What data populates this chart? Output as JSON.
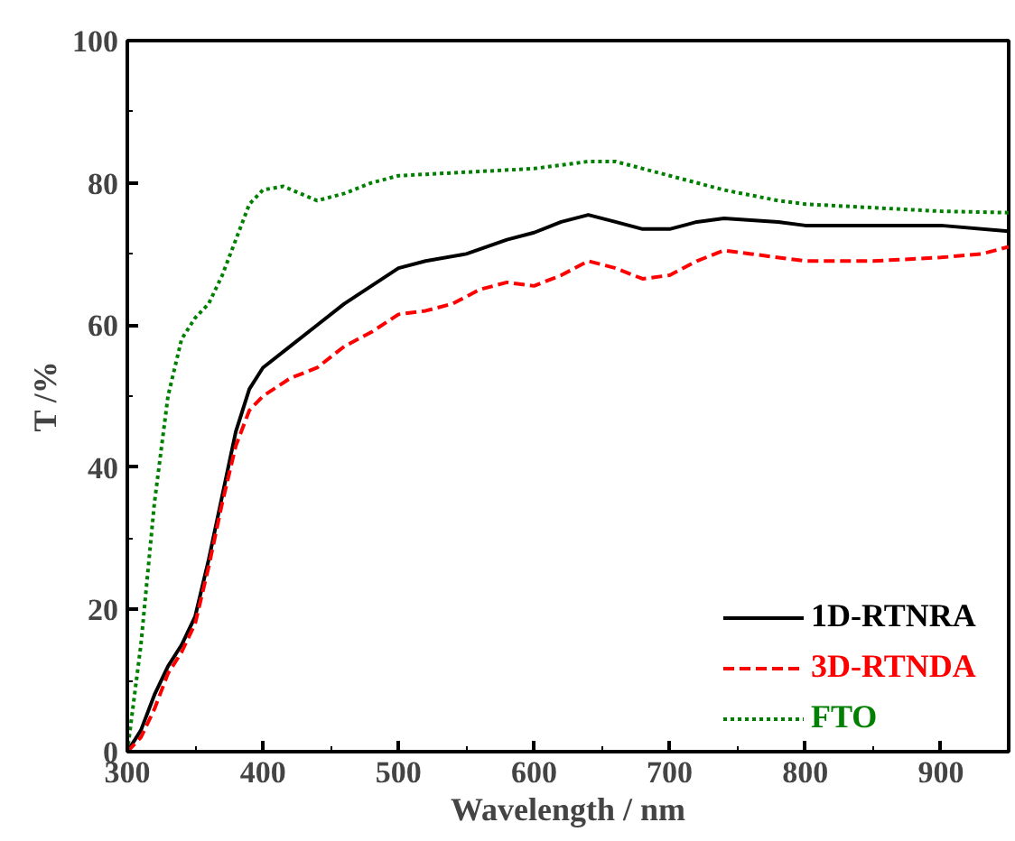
{
  "chart_data": {
    "type": "line",
    "xlabel": "Wavelength / nm",
    "ylabel": "T /%",
    "xlim": [
      300,
      950
    ],
    "ylim": [
      0,
      100
    ],
    "xticks": [
      300,
      400,
      500,
      600,
      700,
      800,
      900
    ],
    "yticks": [
      0,
      20,
      40,
      60,
      80,
      100
    ],
    "grid": false,
    "legend": "bottom right",
    "series": [
      {
        "name": "1D-RTNRA",
        "color": "#000000",
        "line_style": "solid",
        "x": [
          300,
          310,
          320,
          330,
          340,
          350,
          360,
          370,
          380,
          390,
          400,
          420,
          440,
          460,
          480,
          500,
          520,
          550,
          580,
          600,
          620,
          640,
          660,
          680,
          700,
          720,
          740,
          780,
          800,
          850,
          900,
          950
        ],
        "values": [
          0,
          3,
          8,
          12,
          15,
          19,
          27,
          36,
          45,
          51,
          54,
          57,
          60,
          63,
          65.5,
          68,
          69,
          70,
          72,
          73,
          74.5,
          75.5,
          74.5,
          73.5,
          73.5,
          74.5,
          75,
          74.5,
          74,
          74,
          74,
          73.2
        ]
      },
      {
        "name": "3D-RTNDA",
        "color": "#ff0000",
        "line_style": "dashed",
        "x": [
          300,
          310,
          320,
          330,
          340,
          350,
          360,
          370,
          380,
          390,
          400,
          420,
          440,
          460,
          480,
          500,
          520,
          540,
          560,
          580,
          600,
          620,
          640,
          660,
          680,
          700,
          720,
          740,
          760,
          800,
          850,
          900,
          930,
          950
        ],
        "values": [
          0,
          2,
          6,
          11,
          14,
          18,
          26,
          35,
          43,
          48,
          50,
          52.5,
          54,
          57,
          59,
          61.5,
          62,
          63,
          65,
          66,
          65.5,
          67,
          69,
          68,
          66.5,
          67,
          69,
          70.5,
          70,
          69,
          69,
          69.5,
          70,
          71
        ]
      },
      {
        "name": "FTO",
        "color": "#008000",
        "line_style": "dotted",
        "x": [
          300,
          310,
          320,
          330,
          340,
          350,
          360,
          370,
          380,
          390,
          400,
          415,
          440,
          460,
          480,
          500,
          550,
          600,
          640,
          660,
          680,
          700,
          740,
          780,
          800,
          850,
          900,
          950
        ],
        "values": [
          0,
          15,
          35,
          50,
          58,
          61,
          63,
          67,
          72,
          77,
          79,
          79.5,
          77.5,
          78.5,
          80,
          81,
          81.5,
          82,
          83,
          83,
          82,
          81,
          79,
          77.5,
          77,
          76.5,
          76,
          75.8
        ]
      }
    ]
  }
}
